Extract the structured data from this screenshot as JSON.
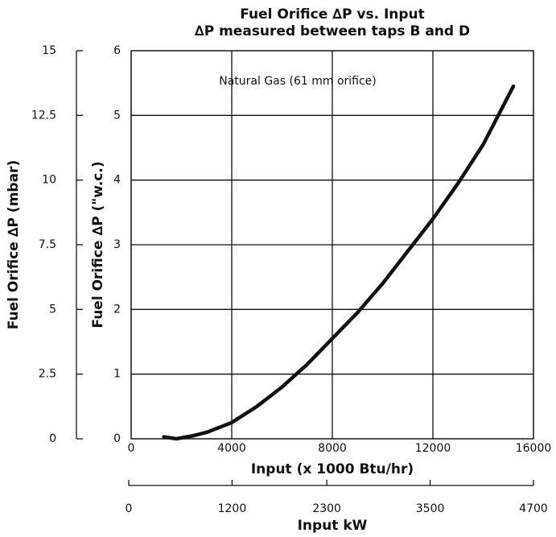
{
  "chart_data": {
    "type": "line",
    "title": "Fuel Orifice ∆P vs. Input",
    "subtitle": "∆P measured between taps B and D",
    "annotation": "Natural Gas (61 mm orifice)",
    "xlabel": "Input (x 1000 Btu/hr)",
    "ylabel": "Fuel Orifice ∆P (\"w.c.)",
    "y2label": "Fuel Orifice ∆P (mbar)",
    "x2label": "Input kW",
    "x": [
      1300,
      1800,
      2500,
      3000,
      4000,
      5000,
      6000,
      7000,
      8000,
      9000,
      10000,
      11000,
      12000,
      13000,
      14000,
      15200
    ],
    "series": [
      {
        "color": "#111111",
        "values": [
          0.03,
          0,
          0.05,
          0.1,
          0.25,
          0.5,
          0.8,
          1.15,
          1.55,
          1.95,
          2.4,
          2.9,
          3.4,
          3.95,
          4.55,
          5.45
        ]
      }
    ],
    "xlim": [
      0,
      16000
    ],
    "xticks": [
      0,
      4000,
      8000,
      12000,
      16000
    ],
    "ylim": [
      0,
      6
    ],
    "yticks": [
      0,
      1,
      2,
      3,
      4,
      5,
      6
    ],
    "y2lim": [
      0,
      15
    ],
    "y2ticks": [
      0,
      2.5,
      5,
      7.5,
      10,
      12.5,
      15
    ],
    "x2lim": [
      0,
      4700
    ],
    "x2ticks": [
      0,
      1200,
      2300,
      3500,
      4700
    ],
    "grid": true
  }
}
